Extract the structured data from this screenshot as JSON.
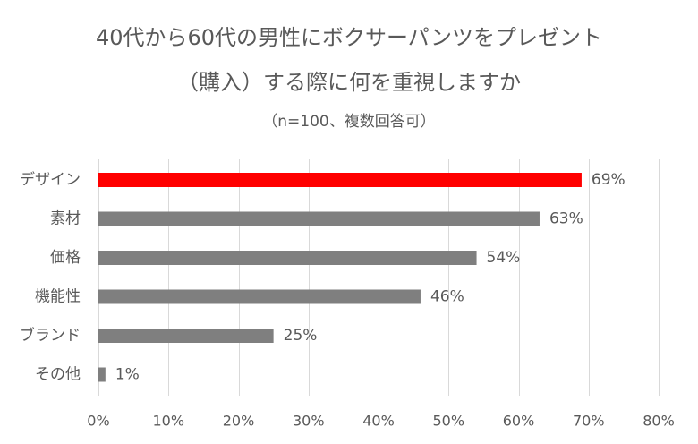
{
  "chart_data": {
    "type": "bar",
    "orientation": "horizontal",
    "title": "40代から60代の男性にボクサーパンツをプレゼント",
    "title_line2": "（購入）する際に何を重視しますか",
    "subtitle": "（n=100、複数回答可）",
    "categories": [
      "デザイン",
      "素材",
      "価格",
      "機能性",
      "ブランド",
      "その他"
    ],
    "values": [
      69,
      63,
      54,
      46,
      25,
      1
    ],
    "data_labels": [
      "69%",
      "63%",
      "54%",
      "46%",
      "25%",
      "1%"
    ],
    "xlim": [
      0,
      80
    ],
    "x_ticks": [
      0,
      10,
      20,
      30,
      40,
      50,
      60,
      70,
      80
    ],
    "x_tick_labels": [
      "0%",
      "10%",
      "20%",
      "30%",
      "40%",
      "50%",
      "60%",
      "70%",
      "80%"
    ],
    "grid": "vertical",
    "legend": "none",
    "colors": {
      "highlight": "#ff0000",
      "bar": "#7f7f7f",
      "grid": "#d9d9d9",
      "text": "#595959"
    }
  }
}
